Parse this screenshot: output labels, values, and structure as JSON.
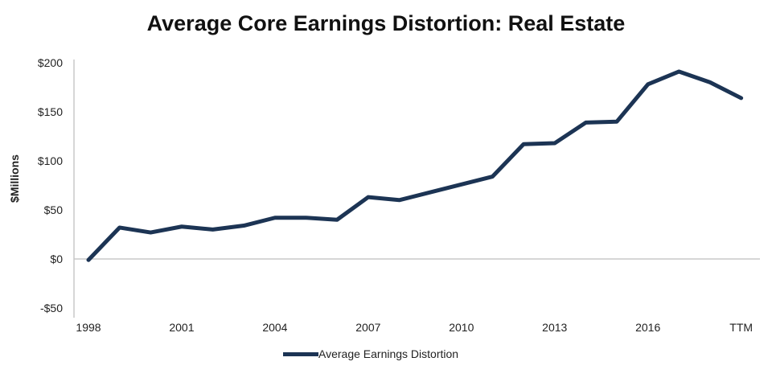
{
  "chart_data": {
    "type": "line",
    "title": "Average Core Earnings Distortion: Real Estate",
    "xlabel": "",
    "ylabel": "$Millions",
    "ylim": [
      -50,
      200
    ],
    "yticks": [
      -50,
      0,
      50,
      100,
      150,
      200
    ],
    "ytick_labels": [
      "-$50",
      "$0",
      "$50",
      "$100",
      "$150",
      "$200"
    ],
    "categories": [
      "1998",
      "1999",
      "2000",
      "2001",
      "2002",
      "2003",
      "2004",
      "2005",
      "2006",
      "2007",
      "2008",
      "2009",
      "2010",
      "2011",
      "2012",
      "2013",
      "2014",
      "2015",
      "2016",
      "2017",
      "2018",
      "TTM"
    ],
    "xtick_labels": [
      "1998",
      "2001",
      "2004",
      "2007",
      "2010",
      "2013",
      "2016",
      "TTM"
    ],
    "series": [
      {
        "name": "Average Earnings Distortion",
        "color": "#1c3454",
        "values": [
          -1,
          32,
          27,
          33,
          30,
          34,
          42,
          42,
          40,
          63,
          60,
          68,
          76,
          84,
          117,
          118,
          139,
          140,
          178,
          191,
          180,
          164
        ]
      }
    ],
    "legend": "bottom",
    "grid": false
  }
}
